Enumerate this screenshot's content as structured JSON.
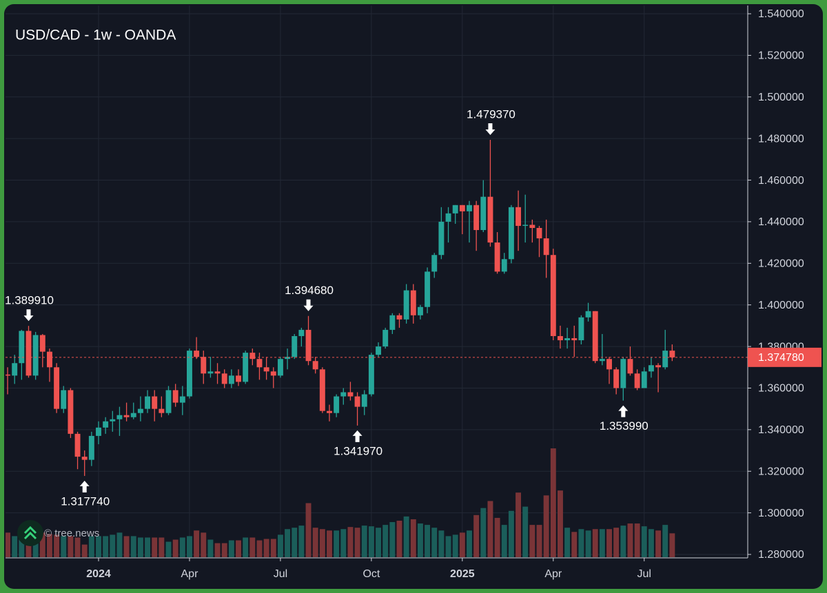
{
  "chart_data": {
    "type": "candlestick",
    "title": "USD/CAD - 1w - OANDA",
    "watermark": "© tree.news",
    "colors": {
      "up": "#26a69a",
      "down": "#ef5350",
      "up_volume": "#1b5e5a",
      "down_volume": "#7a3437"
    },
    "grid": true,
    "xlim": [
      -13.3,
      92.8
    ],
    "xticks": [
      {
        "value": 0,
        "label": "2024"
      },
      {
        "value": 13,
        "label": "Apr"
      },
      {
        "value": 26,
        "label": "Jul"
      },
      {
        "value": 39,
        "label": "Oct"
      },
      {
        "value": 52,
        "label": "2025"
      },
      {
        "value": 65,
        "label": "Apr"
      },
      {
        "value": 78,
        "label": "Jul"
      }
    ],
    "ylim": [
      1.28,
      1.54
    ],
    "yticks": [
      {
        "value": 1.28,
        "label": "1.280000"
      },
      {
        "value": 1.3,
        "label": "1.300000"
      },
      {
        "value": 1.32,
        "label": "1.320000"
      },
      {
        "value": 1.34,
        "label": "1.340000"
      },
      {
        "value": 1.36,
        "label": "1.360000"
      },
      {
        "value": 1.38,
        "label": "1.380000"
      },
      {
        "value": 1.4,
        "label": "1.400000"
      },
      {
        "value": 1.42,
        "label": "1.420000"
      },
      {
        "value": 1.44,
        "label": "1.440000"
      },
      {
        "value": 1.46,
        "label": "1.460000"
      },
      {
        "value": 1.48,
        "label": "1.480000"
      },
      {
        "value": 1.5,
        "label": "1.500000"
      },
      {
        "value": 1.52,
        "label": "1.520000"
      },
      {
        "value": 1.54,
        "label": "1.540000"
      }
    ],
    "x": [
      -13,
      -12,
      -11,
      -10,
      -9,
      -8,
      -7,
      -6,
      -5,
      -4,
      -3,
      -2,
      -1,
      0,
      1,
      2,
      3,
      4,
      5,
      6,
      7,
      8,
      9,
      10,
      11,
      12,
      13,
      14,
      15,
      16,
      17,
      18,
      19,
      20,
      21,
      22,
      23,
      24,
      25,
      26,
      27,
      28,
      29,
      30,
      31,
      32,
      33,
      34,
      35,
      36,
      37,
      38,
      39,
      40,
      41,
      42,
      43,
      44,
      45,
      46,
      47,
      48,
      49,
      50,
      51,
      52,
      53,
      54,
      55,
      56,
      57,
      58,
      59,
      60,
      61,
      62,
      63,
      64,
      65,
      66,
      67,
      68,
      69,
      70,
      71,
      72,
      73,
      74,
      75,
      76,
      77,
      78,
      79,
      80,
      81,
      82
    ],
    "open": [
      1.3665,
      1.366,
      1.372,
      1.3875,
      1.366,
      1.3855,
      1.3775,
      1.37,
      1.35,
      1.359,
      1.338,
      1.327,
      1.3255,
      1.337,
      1.341,
      1.344,
      1.345,
      1.347,
      1.346,
      1.348,
      1.35,
      1.356,
      1.35,
      1.348,
      1.359,
      1.353,
      1.356,
      1.378,
      1.375,
      1.367,
      1.368,
      1.367,
      1.362,
      1.366,
      1.363,
      1.377,
      1.374,
      1.37,
      1.368,
      1.366,
      1.374,
      1.375,
      1.385,
      1.388,
      1.373,
      1.369,
      1.349,
      1.348,
      1.356,
      1.358,
      1.356,
      1.351,
      1.357,
      1.376,
      1.38,
      1.388,
      1.395,
      1.393,
      1.407,
      1.395,
      1.399,
      1.416,
      1.424,
      1.44,
      1.444,
      1.448,
      1.445,
      1.448,
      1.436,
      1.452,
      1.43,
      1.416,
      1.422,
      1.447,
      1.438,
      1.4385,
      1.437,
      1.432,
      1.424,
      1.385,
      1.383,
      1.384,
      1.383,
      1.394,
      1.397,
      1.373,
      1.374,
      1.369,
      1.36,
      1.374,
      1.367,
      1.36,
      1.368,
      1.371,
      1.37,
      1.378
    ],
    "high": [
      1.37,
      1.376,
      1.388,
      1.38991,
      1.387,
      1.386,
      1.379,
      1.372,
      1.361,
      1.36,
      1.339,
      1.33,
      1.339,
      1.344,
      1.346,
      1.349,
      1.351,
      1.353,
      1.353,
      1.356,
      1.359,
      1.359,
      1.356,
      1.361,
      1.362,
      1.361,
      1.379,
      1.3845,
      1.378,
      1.375,
      1.372,
      1.369,
      1.369,
      1.369,
      1.378,
      1.379,
      1.377,
      1.375,
      1.37,
      1.375,
      1.379,
      1.386,
      1.389,
      1.39468,
      1.375,
      1.37,
      1.352,
      1.357,
      1.36,
      1.363,
      1.358,
      1.359,
      1.377,
      1.382,
      1.389,
      1.396,
      1.396,
      1.41,
      1.41,
      1.4,
      1.418,
      1.425,
      1.447,
      1.447,
      1.448,
      1.448,
      1.45,
      1.45,
      1.46,
      1.47937,
      1.435,
      1.425,
      1.448,
      1.455,
      1.453,
      1.441,
      1.438,
      1.441,
      1.427,
      1.39,
      1.389,
      1.39,
      1.395,
      1.401,
      1.397,
      1.386,
      1.375,
      1.37,
      1.375,
      1.38,
      1.369,
      1.37,
      1.375,
      1.372,
      1.388,
      1.381
    ],
    "low": [
      1.357,
      1.362,
      1.364,
      1.365,
      1.364,
      1.37,
      1.363,
      1.348,
      1.348,
      1.336,
      1.321,
      1.31774,
      1.3225,
      1.333,
      1.338,
      1.339,
      1.337,
      1.344,
      1.345,
      1.344,
      1.348,
      1.344,
      1.346,
      1.347,
      1.351,
      1.347,
      1.355,
      1.374,
      1.362,
      1.365,
      1.362,
      1.36,
      1.36,
      1.361,
      1.362,
      1.371,
      1.364,
      1.364,
      1.36,
      1.365,
      1.369,
      1.374,
      1.38,
      1.371,
      1.367,
      1.348,
      1.344,
      1.346,
      1.352,
      1.354,
      1.34197,
      1.347,
      1.356,
      1.375,
      1.379,
      1.386,
      1.389,
      1.391,
      1.391,
      1.393,
      1.396,
      1.413,
      1.422,
      1.43,
      1.439,
      1.434,
      1.43,
      1.426,
      1.435,
      1.428,
      1.415,
      1.415,
      1.42,
      1.426,
      1.43,
      1.43,
      1.423,
      1.413,
      1.383,
      1.379,
      1.379,
      1.375,
      1.381,
      1.392,
      1.372,
      1.371,
      1.362,
      1.357,
      1.35399,
      1.366,
      1.359,
      1.36,
      1.365,
      1.358,
      1.369,
      1.373
    ],
    "close": [
      1.366,
      1.372,
      1.3875,
      1.366,
      1.3855,
      1.3775,
      1.37,
      1.35,
      1.359,
      1.338,
      1.327,
      1.3255,
      1.337,
      1.341,
      1.344,
      1.345,
      1.347,
      1.346,
      1.348,
      1.35,
      1.356,
      1.35,
      1.348,
      1.359,
      1.353,
      1.356,
      1.378,
      1.375,
      1.367,
      1.368,
      1.367,
      1.362,
      1.366,
      1.363,
      1.377,
      1.374,
      1.37,
      1.368,
      1.366,
      1.374,
      1.375,
      1.385,
      1.388,
      1.373,
      1.369,
      1.349,
      1.348,
      1.356,
      1.358,
      1.356,
      1.351,
      1.357,
      1.376,
      1.38,
      1.388,
      1.395,
      1.393,
      1.407,
      1.395,
      1.399,
      1.416,
      1.424,
      1.44,
      1.444,
      1.448,
      1.445,
      1.448,
      1.436,
      1.452,
      1.43,
      1.416,
      1.422,
      1.447,
      1.438,
      1.4385,
      1.437,
      1.432,
      1.424,
      1.385,
      1.383,
      1.384,
      1.383,
      1.394,
      1.397,
      1.373,
      1.374,
      1.369,
      1.36,
      1.374,
      1.367,
      1.36,
      1.368,
      1.371,
      1.37,
      1.378,
      1.37478
    ],
    "volume": [
      35,
      30,
      35,
      32,
      33,
      35,
      33,
      32,
      30,
      30,
      28,
      18,
      30,
      30,
      30,
      32,
      35,
      30,
      30,
      28,
      28,
      28,
      28,
      22,
      25,
      28,
      30,
      38,
      35,
      25,
      20,
      20,
      24,
      24,
      28,
      28,
      24,
      26,
      26,
      32,
      40,
      42,
      45,
      77,
      42,
      40,
      38,
      38,
      40,
      43,
      42,
      45,
      44,
      42,
      46,
      50,
      52,
      58,
      54,
      48,
      46,
      42,
      38,
      30,
      32,
      35,
      38,
      60,
      70,
      80,
      56,
      46,
      66,
      92,
      72,
      46,
      46,
      88,
      155,
      95,
      42,
      36,
      40,
      38,
      40,
      40,
      40,
      42,
      45,
      48,
      48,
      44,
      40,
      38,
      46,
      34
    ],
    "annotations": [
      {
        "label": "1.389910",
        "value": 1.38991,
        "x": -10,
        "side": "high"
      },
      {
        "label": "1.317740",
        "value": 1.31774,
        "x": -2,
        "side": "low"
      },
      {
        "label": "1.394680",
        "value": 1.39468,
        "x": 30,
        "side": "high"
      },
      {
        "label": "1.341970",
        "value": 1.34197,
        "x": 37,
        "side": "low"
      },
      {
        "label": "1.479370",
        "value": 1.47937,
        "x": 56,
        "side": "high"
      },
      {
        "label": "1.353990",
        "value": 1.35399,
        "x": 75,
        "side": "low"
      }
    ],
    "last_price": {
      "value": 1.37478,
      "label": "1.374780"
    }
  }
}
